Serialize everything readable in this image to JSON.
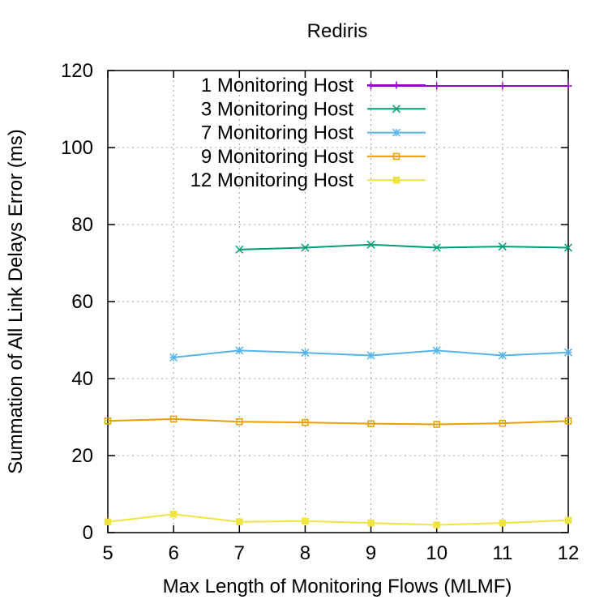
{
  "chart_data": {
    "type": "line",
    "title": "Rediris",
    "xlabel": "Max Length of Monitoring Flows (MLMF)",
    "ylabel": "Summation of All Link Delays Error (ms)",
    "xlim": [
      5,
      12
    ],
    "ylim": [
      0,
      120
    ],
    "xticks": [
      "5",
      "6",
      "7",
      "8",
      "9",
      "10",
      "11",
      "12"
    ],
    "yticks": [
      "0",
      "20",
      "40",
      "60",
      "80",
      "100",
      "120"
    ],
    "grid": true,
    "legend": "top-left",
    "series": [
      {
        "name": "1 Monitoring Host",
        "color": "#9400d3",
        "marker": "plus",
        "x": [
          9,
          10,
          11,
          12
        ],
        "y": [
          116,
          116,
          116,
          116
        ]
      },
      {
        "name": "3 Monitoring Host",
        "color": "#009e73",
        "marker": "x",
        "x": [
          7,
          8,
          9,
          10,
          11,
          12
        ],
        "y": [
          73.5,
          74,
          74.8,
          74,
          74.3,
          74
        ]
      },
      {
        "name": "7 Monitoring Host",
        "color": "#56b4e9",
        "marker": "star",
        "x": [
          6,
          7,
          8,
          9,
          10,
          11,
          12
        ],
        "y": [
          45.5,
          47.3,
          46.7,
          46,
          47.3,
          46,
          46.8
        ]
      },
      {
        "name": "9 Monitoring Host",
        "color": "#e69f00",
        "marker": "square",
        "x": [
          5,
          6,
          7,
          8,
          9,
          10,
          11,
          12
        ],
        "y": [
          29,
          29.5,
          28.8,
          28.6,
          28.3,
          28.1,
          28.4,
          29
        ]
      },
      {
        "name": "12 Monitoring Host",
        "color": "#f0e442",
        "marker": "filled-square",
        "x": [
          5,
          6,
          7,
          8,
          9,
          10,
          11,
          12
        ],
        "y": [
          2.8,
          4.8,
          2.8,
          3,
          2.5,
          2,
          2.5,
          3.2
        ]
      }
    ]
  }
}
